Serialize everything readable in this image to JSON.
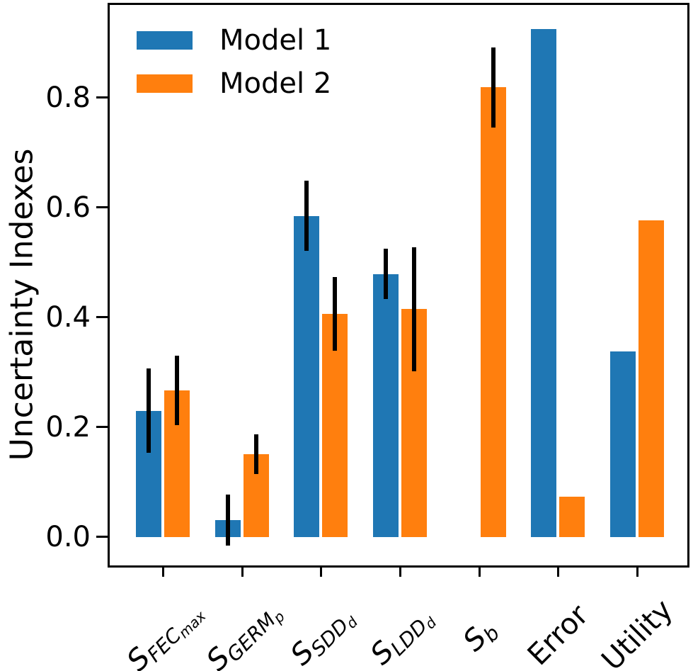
{
  "chart_data": {
    "type": "bar",
    "title": "",
    "xlabel": "",
    "ylabel": "Uncertainty Indexes",
    "categories": [
      "S_FEC_max",
      "S_GERM_p",
      "S_SDD_d",
      "S_LDD_d",
      "S_b",
      "Error",
      "Utility"
    ],
    "category_labels": [
      {
        "base": "S",
        "sub": "FEC",
        "subsub": "max",
        "italic": true
      },
      {
        "base": "S",
        "sub": "GERM",
        "subsub": "p",
        "italic": true
      },
      {
        "base": "S",
        "sub": "SDD",
        "subsub": "d",
        "italic": true
      },
      {
        "base": "S",
        "sub": "LDD",
        "subsub": "d",
        "italic": true
      },
      {
        "base": "S",
        "sub": "b",
        "subsub": "",
        "italic": true
      },
      {
        "base": "Error",
        "sub": "",
        "subsub": "",
        "italic": false
      },
      {
        "base": "Utility",
        "sub": "",
        "subsub": "",
        "italic": false
      }
    ],
    "series": [
      {
        "name": "Model 1",
        "color": "#1f77b4",
        "values": [
          0.23,
          0.031,
          0.585,
          0.479,
          0,
          0.925,
          0.338
        ],
        "errors": [
          0.077,
          0.046,
          0.064,
          0.046,
          null,
          null,
          null
        ]
      },
      {
        "name": "Model 2",
        "color": "#ff7f0e",
        "values": [
          0.267,
          0.151,
          0.406,
          0.415,
          0.819,
          0.074,
          0.577
        ],
        "errors": [
          0.063,
          0.036,
          0.067,
          0.113,
          0.073,
          null,
          null
        ]
      }
    ],
    "y_ticks": [
      0.0,
      0.2,
      0.4,
      0.6,
      0.8
    ],
    "y_tick_labels": [
      "0.0",
      "0.2",
      "0.4",
      "0.6",
      "0.8"
    ],
    "ylim": [
      -0.055,
      0.972
    ],
    "x_tick_rotation_deg": 45,
    "error_bar_color": "#000000",
    "grid": false,
    "legend": {
      "position": "upper-left",
      "frame": false
    }
  }
}
